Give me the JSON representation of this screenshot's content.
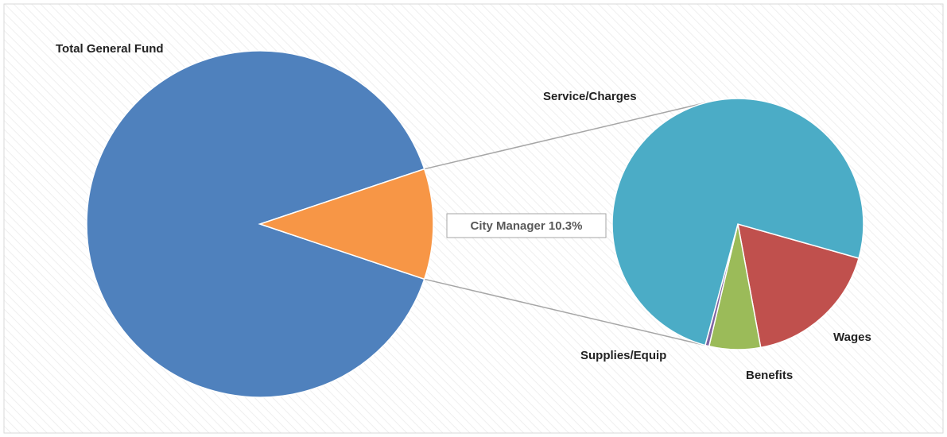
{
  "chart_data": [
    {
      "type": "pie",
      "categories": [
        "Total General Fund",
        "City Manager"
      ],
      "values": [
        89.7,
        10.3
      ],
      "value_labels": [
        null,
        "City Manager 10.3%"
      ],
      "colors": [
        "#4f81bd",
        "#f79646"
      ]
    },
    {
      "type": "pie",
      "categories": [
        "Wages",
        "Benefits",
        "Supplies/Equip",
        "Service/Charges"
      ],
      "values": [
        17.7,
        6.6,
        0.5,
        75.2
      ],
      "colors": [
        "#c0504d",
        "#9bbb59",
        "#8064a2",
        "#4bacc6"
      ]
    }
  ]
}
